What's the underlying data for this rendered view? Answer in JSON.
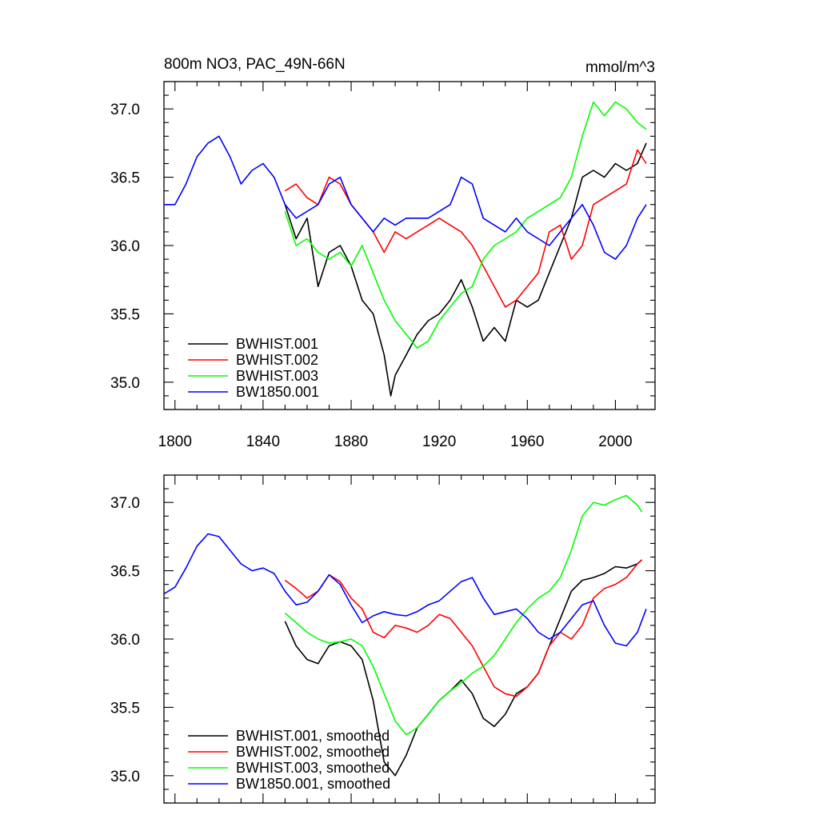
{
  "chart_data": [
    {
      "type": "line",
      "title": "800m NO3, PAC_49N-66N",
      "units": "mmol/m^3",
      "xlim": [
        1795,
        2018
      ],
      "ylim": [
        34.8,
        37.2
      ],
      "xticks": [
        1800,
        1840,
        1880,
        1920,
        1960,
        2000
      ],
      "xtick_labels": [
        "1800",
        "1840",
        "1880",
        "1920",
        "1960",
        "2000"
      ],
      "yticks": [
        35.0,
        35.5,
        36.0,
        36.5,
        37.0
      ],
      "ytick_labels": [
        "35.0",
        "35.5",
        "36.0",
        "36.5",
        "37.0"
      ],
      "legend_position": "lower-left",
      "series": [
        {
          "name": "BWHIST.001",
          "color": "#000000",
          "x": [
            1850,
            1855,
            1860,
            1865,
            1870,
            1875,
            1880,
            1885,
            1890,
            1895,
            1898,
            1900,
            1905,
            1910,
            1915,
            1920,
            1925,
            1930,
            1935,
            1940,
            1945,
            1950,
            1955,
            1960,
            1965,
            1970,
            1975,
            1980,
            1985,
            1990,
            1995,
            2000,
            2005,
            2010,
            2014
          ],
          "y": [
            36.3,
            36.05,
            36.2,
            35.7,
            35.95,
            36.0,
            35.85,
            35.6,
            35.5,
            35.2,
            34.9,
            35.05,
            35.2,
            35.35,
            35.45,
            35.5,
            35.6,
            35.75,
            35.55,
            35.3,
            35.4,
            35.3,
            35.6,
            35.55,
            35.6,
            35.8,
            36.0,
            36.2,
            36.5,
            36.55,
            36.5,
            36.6,
            36.55,
            36.6,
            36.75
          ]
        },
        {
          "name": "BWHIST.002",
          "color": "#ff0000",
          "x": [
            1850,
            1855,
            1860,
            1865,
            1870,
            1875,
            1880,
            1885,
            1890,
            1895,
            1900,
            1905,
            1910,
            1915,
            1920,
            1925,
            1930,
            1935,
            1940,
            1945,
            1950,
            1955,
            1960,
            1965,
            1970,
            1975,
            1980,
            1985,
            1990,
            1995,
            2000,
            2005,
            2010,
            2014
          ],
          "y": [
            36.4,
            36.45,
            36.35,
            36.3,
            36.5,
            36.45,
            36.3,
            36.2,
            36.1,
            35.95,
            36.1,
            36.05,
            36.1,
            36.15,
            36.2,
            36.15,
            36.1,
            36.0,
            35.85,
            35.7,
            35.55,
            35.6,
            35.7,
            35.8,
            36.1,
            36.15,
            35.9,
            36.0,
            36.3,
            36.35,
            36.4,
            36.45,
            36.7,
            36.6
          ]
        },
        {
          "name": "BWHIST.003",
          "color": "#00ff00",
          "x": [
            1850,
            1855,
            1860,
            1865,
            1870,
            1875,
            1880,
            1885,
            1890,
            1895,
            1900,
            1905,
            1910,
            1915,
            1920,
            1925,
            1930,
            1935,
            1940,
            1945,
            1950,
            1955,
            1960,
            1965,
            1970,
            1975,
            1980,
            1985,
            1990,
            1995,
            2000,
            2005,
            2010,
            2014
          ],
          "y": [
            36.25,
            36.0,
            36.05,
            35.95,
            35.9,
            35.95,
            35.85,
            36.0,
            35.8,
            35.6,
            35.45,
            35.35,
            35.25,
            35.3,
            35.45,
            35.55,
            35.65,
            35.7,
            35.9,
            36.0,
            36.05,
            36.1,
            36.2,
            36.25,
            36.3,
            36.35,
            36.5,
            36.8,
            37.05,
            36.95,
            37.05,
            37.0,
            36.9,
            36.85
          ]
        },
        {
          "name": "BW1850.001",
          "color": "#0000ff",
          "x": [
            1795,
            1800,
            1805,
            1810,
            1815,
            1820,
            1825,
            1830,
            1835,
            1840,
            1845,
            1850,
            1855,
            1860,
            1865,
            1870,
            1875,
            1880,
            1885,
            1890,
            1895,
            1900,
            1905,
            1910,
            1915,
            1920,
            1925,
            1930,
            1935,
            1940,
            1945,
            1950,
            1955,
            1960,
            1965,
            1970,
            1975,
            1980,
            1985,
            1990,
            1995,
            2000,
            2005,
            2010,
            2014
          ],
          "y": [
            36.3,
            36.3,
            36.45,
            36.65,
            36.75,
            36.8,
            36.65,
            36.45,
            36.55,
            36.6,
            36.5,
            36.3,
            36.2,
            36.25,
            36.3,
            36.45,
            36.5,
            36.3,
            36.2,
            36.1,
            36.2,
            36.15,
            36.2,
            36.2,
            36.2,
            36.25,
            36.3,
            36.5,
            36.45,
            36.2,
            36.15,
            36.1,
            36.2,
            36.1,
            36.05,
            36.0,
            36.1,
            36.2,
            36.3,
            36.15,
            35.95,
            35.9,
            36.0,
            36.2,
            36.3
          ]
        }
      ]
    },
    {
      "type": "line",
      "xlim": [
        1795,
        2018
      ],
      "ylim": [
        34.8,
        37.2
      ],
      "yticks": [
        35.0,
        35.5,
        36.0,
        36.5,
        37.0
      ],
      "ytick_labels": [
        "35.0",
        "35.5",
        "36.0",
        "36.5",
        "37.0"
      ],
      "legend_position": "lower-left",
      "series": [
        {
          "name": "BWHIST.001, smoothed",
          "color": "#000000",
          "x": [
            1850,
            1855,
            1860,
            1865,
            1870,
            1875,
            1880,
            1885,
            1890,
            1895,
            1900,
            1905,
            1910,
            1915,
            1920,
            1925,
            1930,
            1935,
            1940,
            1945,
            1950,
            1955,
            1960,
            1965,
            1970,
            1975,
            1980,
            1985,
            1990,
            1995,
            2000,
            2005,
            2010,
            2012
          ],
          "y": [
            36.13,
            35.95,
            35.85,
            35.82,
            35.95,
            35.98,
            35.95,
            35.85,
            35.55,
            35.1,
            35.0,
            35.15,
            35.35,
            35.45,
            35.55,
            35.62,
            35.7,
            35.6,
            35.42,
            35.36,
            35.45,
            35.6,
            35.65,
            35.75,
            35.95,
            36.15,
            36.35,
            36.43,
            36.45,
            36.48,
            36.53,
            36.52,
            36.55,
            36.58
          ]
        },
        {
          "name": "BWHIST.002, smoothed",
          "color": "#ff0000",
          "x": [
            1850,
            1855,
            1860,
            1865,
            1870,
            1875,
            1880,
            1885,
            1890,
            1895,
            1900,
            1905,
            1910,
            1915,
            1920,
            1925,
            1930,
            1935,
            1940,
            1945,
            1950,
            1955,
            1960,
            1965,
            1970,
            1975,
            1980,
            1985,
            1990,
            1995,
            2000,
            2005,
            2010,
            2012
          ],
          "y": [
            36.43,
            36.37,
            36.3,
            36.35,
            36.47,
            36.42,
            36.3,
            36.22,
            36.05,
            36.01,
            36.1,
            36.08,
            36.05,
            36.1,
            36.18,
            36.15,
            36.05,
            35.95,
            35.8,
            35.65,
            35.6,
            35.58,
            35.65,
            35.75,
            35.95,
            36.05,
            36.0,
            36.1,
            36.3,
            36.37,
            36.4,
            36.45,
            36.55,
            36.58
          ]
        },
        {
          "name": "BWHIST.003, smoothed",
          "color": "#00ff00",
          "x": [
            1850,
            1855,
            1860,
            1865,
            1870,
            1875,
            1880,
            1885,
            1890,
            1895,
            1900,
            1905,
            1910,
            1915,
            1920,
            1925,
            1930,
            1935,
            1940,
            1945,
            1950,
            1955,
            1960,
            1965,
            1970,
            1975,
            1980,
            1985,
            1990,
            1995,
            2000,
            2005,
            2010,
            2012
          ],
          "y": [
            36.19,
            36.12,
            36.05,
            36.0,
            35.97,
            35.98,
            36.0,
            35.95,
            35.8,
            35.6,
            35.4,
            35.3,
            35.35,
            35.45,
            35.55,
            35.62,
            35.68,
            35.75,
            35.8,
            35.88,
            36.0,
            36.12,
            36.22,
            36.3,
            36.35,
            36.45,
            36.65,
            36.9,
            37.0,
            36.98,
            37.02,
            37.05,
            36.98,
            36.93
          ]
        },
        {
          "name": "BW1850.001, smoothed",
          "color": "#0000ff",
          "x": [
            1795,
            1800,
            1805,
            1810,
            1815,
            1820,
            1825,
            1830,
            1835,
            1840,
            1845,
            1850,
            1855,
            1860,
            1865,
            1870,
            1875,
            1880,
            1885,
            1890,
            1895,
            1900,
            1905,
            1910,
            1915,
            1920,
            1925,
            1930,
            1935,
            1940,
            1945,
            1950,
            1955,
            1960,
            1965,
            1970,
            1975,
            1980,
            1985,
            1990,
            1995,
            2000,
            2005,
            2010,
            2014
          ],
          "y": [
            36.33,
            36.38,
            36.52,
            36.68,
            36.77,
            36.75,
            36.65,
            36.55,
            36.5,
            36.52,
            36.48,
            36.35,
            36.25,
            36.27,
            36.35,
            36.47,
            36.4,
            36.25,
            36.12,
            36.17,
            36.2,
            36.18,
            36.17,
            36.2,
            36.25,
            36.28,
            36.35,
            36.42,
            36.45,
            36.3,
            36.18,
            36.2,
            36.22,
            36.15,
            36.05,
            36.0,
            36.05,
            36.15,
            36.25,
            36.28,
            36.1,
            35.97,
            35.95,
            36.05,
            36.22
          ]
        }
      ]
    }
  ]
}
